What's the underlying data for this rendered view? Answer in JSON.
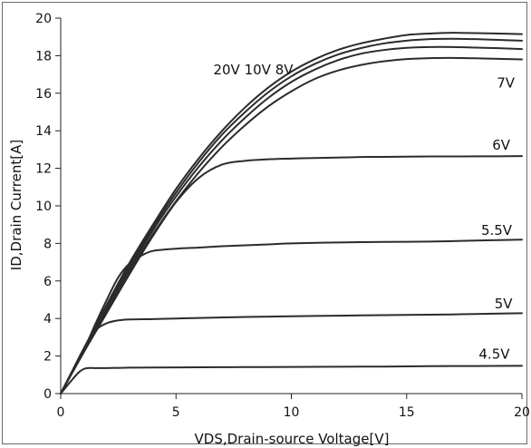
{
  "chart_data": {
    "type": "line",
    "xlabel": "VDS,Drain-source Voltage[V]",
    "ylabel": "ID,Drain Current[A]",
    "xlim": [
      0,
      20
    ],
    "ylim": [
      0,
      20
    ],
    "xticks": [
      0,
      5,
      10,
      15,
      20
    ],
    "yticks": [
      0,
      2,
      4,
      6,
      8,
      10,
      12,
      14,
      16,
      18,
      20
    ],
    "grid": false,
    "line_color": "#2b2b2b",
    "series": [
      {
        "name": "20V",
        "x": [
          0,
          1,
          2,
          3,
          4,
          5,
          6,
          7,
          8,
          9,
          10,
          11,
          12,
          13,
          14,
          15,
          16,
          17,
          18,
          19,
          20
        ],
        "y": [
          0,
          2.4,
          4.75,
          7.0,
          9.0,
          10.9,
          12.55,
          14.0,
          15.25,
          16.3,
          17.15,
          17.8,
          18.3,
          18.65,
          18.9,
          19.1,
          19.18,
          19.22,
          19.2,
          19.18,
          19.15
        ]
      },
      {
        "name": "10V",
        "x": [
          0,
          1,
          2,
          3,
          4,
          5,
          6,
          7,
          8,
          9,
          10,
          11,
          12,
          13,
          14,
          15,
          16,
          17,
          18,
          19,
          20
        ],
        "y": [
          0,
          2.35,
          4.65,
          6.85,
          8.85,
          10.7,
          12.35,
          13.8,
          15.0,
          16.05,
          16.9,
          17.55,
          18.05,
          18.4,
          18.65,
          18.8,
          18.88,
          18.9,
          18.88,
          18.84,
          18.8
        ]
      },
      {
        "name": "8V",
        "x": [
          0,
          1,
          2,
          3,
          4,
          5,
          6,
          7,
          8,
          9,
          10,
          11,
          12,
          13,
          14,
          15,
          16,
          17,
          18,
          19,
          20
        ],
        "y": [
          0,
          2.3,
          4.55,
          6.7,
          8.7,
          10.5,
          12.1,
          13.5,
          14.7,
          15.75,
          16.6,
          17.25,
          17.75,
          18.1,
          18.3,
          18.42,
          18.46,
          18.46,
          18.43,
          18.4,
          18.35
        ]
      },
      {
        "name": "7V",
        "x": [
          0,
          1,
          2,
          3,
          4,
          5,
          6,
          7,
          8,
          9,
          10,
          11,
          12,
          13,
          14,
          15,
          16,
          17,
          18,
          19,
          20
        ],
        "y": [
          0,
          2.25,
          4.45,
          6.55,
          8.5,
          10.25,
          11.8,
          13.15,
          14.3,
          15.3,
          16.1,
          16.75,
          17.2,
          17.5,
          17.7,
          17.82,
          17.87,
          17.88,
          17.86,
          17.83,
          17.8
        ]
      },
      {
        "name": "6V",
        "x": [
          0,
          1,
          2,
          3,
          4,
          5,
          6,
          7,
          8,
          9,
          10,
          11,
          12,
          13,
          14,
          15,
          16,
          17,
          18,
          19,
          20
        ],
        "y": [
          0,
          2.2,
          4.3,
          6.4,
          8.4,
          10.2,
          11.5,
          12.2,
          12.4,
          12.48,
          12.52,
          12.55,
          12.57,
          12.6,
          12.61,
          12.62,
          12.63,
          12.63,
          12.64,
          12.64,
          12.65
        ]
      },
      {
        "name": "5.5V",
        "x": [
          0,
          0.5,
          1,
          1.5,
          2,
          2.5,
          3,
          3.5,
          4,
          5,
          6,
          7,
          8,
          9,
          10,
          12,
          14,
          16,
          18,
          20
        ],
        "y": [
          0,
          1.15,
          2.3,
          3.7,
          5.0,
          6.2,
          6.95,
          7.35,
          7.6,
          7.72,
          7.78,
          7.85,
          7.9,
          7.95,
          8.0,
          8.05,
          8.08,
          8.1,
          8.15,
          8.2
        ]
      },
      {
        "name": "5V",
        "x": [
          0,
          0.5,
          1,
          1.5,
          2,
          2.5,
          3,
          4,
          5,
          6,
          8,
          10,
          12,
          14,
          16,
          18,
          20
        ],
        "y": [
          0,
          1.2,
          2.4,
          3.35,
          3.75,
          3.9,
          3.95,
          3.97,
          4.0,
          4.03,
          4.08,
          4.12,
          4.15,
          4.18,
          4.2,
          4.24,
          4.28
        ]
      },
      {
        "name": "4.5V",
        "x": [
          0,
          0.4,
          0.8,
          1.1,
          1.5,
          2,
          3,
          4,
          6,
          8,
          10,
          12,
          14,
          16,
          18,
          20
        ],
        "y": [
          0,
          0.6,
          1.15,
          1.35,
          1.36,
          1.36,
          1.38,
          1.39,
          1.4,
          1.41,
          1.42,
          1.43,
          1.44,
          1.46,
          1.47,
          1.48
        ]
      }
    ],
    "annotations": [
      {
        "text": "20V 10V  8V",
        "x": 8.35,
        "y": 17.0
      },
      {
        "text": "7V",
        "x": 19.3,
        "y": 16.3
      },
      {
        "text": "6V",
        "x": 19.1,
        "y": 13.0
      },
      {
        "text": "5.5V",
        "x": 18.9,
        "y": 8.45
      },
      {
        "text": "5V",
        "x": 19.2,
        "y": 4.55
      },
      {
        "text": "4.5V",
        "x": 18.8,
        "y": 1.85
      }
    ]
  }
}
